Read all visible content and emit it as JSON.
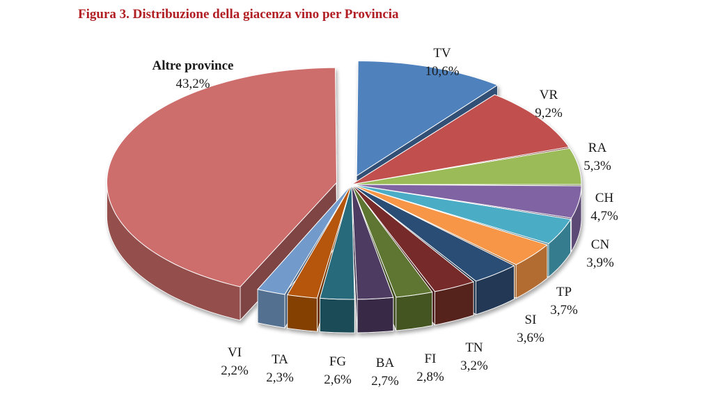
{
  "title": "Figura 3. Distribuzione della giacenza vino per Provincia",
  "chart_data": {
    "type": "pie",
    "style": "3d-exploded",
    "categories": [
      "TV",
      "VR",
      "RA",
      "CH",
      "CN",
      "TP",
      "SI",
      "TN",
      "FI",
      "BA",
      "FG",
      "TA",
      "VI",
      "Altre province"
    ],
    "values": [
      10.6,
      9.2,
      5.3,
      4.7,
      3.9,
      3.7,
      3.6,
      3.2,
      2.8,
      2.7,
      2.6,
      2.3,
      2.2,
      43.2
    ],
    "value_labels": [
      "10,6%",
      "9,2%",
      "5,3%",
      "4,7%",
      "3,9%",
      "3,7%",
      "3,6%",
      "3,2%",
      "2,8%",
      "2,7%",
      "2,6%",
      "2,3%",
      "2,2%",
      "43,2%"
    ],
    "colors": [
      "#4f81bd",
      "#c0504d",
      "#9bbb59",
      "#8064a2",
      "#4bacc6",
      "#f79646",
      "#2c4d75",
      "#772c2a",
      "#5f7530",
      "#4d3b62",
      "#276a7c",
      "#b65708",
      "#729aca",
      "#cd6e6d"
    ],
    "legend": "none"
  }
}
